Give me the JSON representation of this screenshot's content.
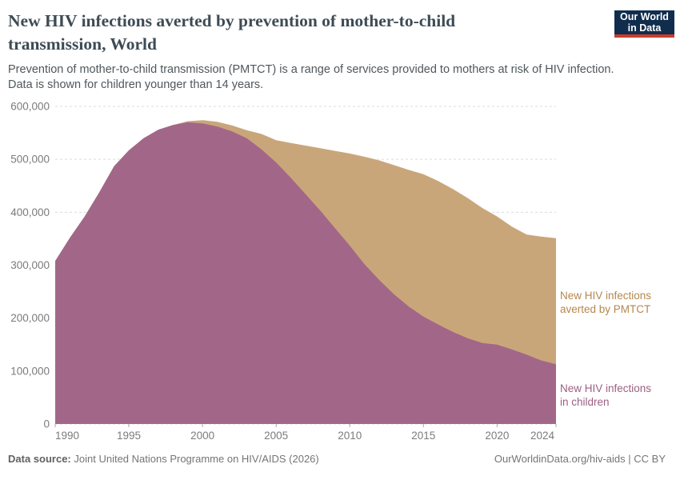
{
  "header": {
    "title": "New HIV infections averted by prevention of mother-to-child\ntransmission, World",
    "subtitle": "Prevention of mother-to-child transmission (PMTCT) is a range of services provided to mothers at risk of HIV infection.\nData is shown for children younger than 14 years."
  },
  "logo": {
    "text": "Our World\nin Data",
    "bg_color": "#102d4e",
    "accent_color": "#cc3b2b"
  },
  "chart_data": {
    "type": "area",
    "stacked": true,
    "grid": "dashed-horizontal",
    "x_min": 1990,
    "x_max": 2024,
    "y_min": 0,
    "y_max": 600000,
    "x": [
      1990,
      1991,
      1992,
      1993,
      1994,
      1995,
      1996,
      1997,
      1998,
      1999,
      2000,
      2001,
      2002,
      2003,
      2004,
      2005,
      2006,
      2007,
      2008,
      2009,
      2010,
      2011,
      2012,
      2013,
      2014,
      2015,
      2016,
      2017,
      2018,
      2019,
      2020,
      2021,
      2022,
      2023,
      2024
    ],
    "series": [
      {
        "name": "New HIV infections in children",
        "label_lines": "New HIV infections\nin children",
        "color": "#a26788",
        "label_color": "#9c5f83",
        "values": [
          308000,
          352000,
          392000,
          438000,
          487000,
          517000,
          540000,
          556000,
          565000,
          570000,
          568000,
          562000,
          553000,
          540000,
          519000,
          494000,
          465000,
          434000,
          403000,
          370000,
          337000,
          302000,
          272000,
          245000,
          222000,
          203000,
          188000,
          174000,
          162000,
          153000,
          150000,
          141000,
          131000,
          120000,
          113000
        ]
      },
      {
        "name": "New HIV infections averted by PMTCT",
        "label_lines": "New HIV infections\naverted by PMTCT",
        "color": "#c9a67a",
        "label_color": "#b5874e",
        "values": [
          0,
          0,
          0,
          0,
          0,
          0,
          0,
          0,
          0,
          2000,
          6000,
          9000,
          11000,
          15000,
          29000,
          42000,
          66000,
          92000,
          118000,
          146000,
          174000,
          203000,
          226000,
          244000,
          258000,
          269000,
          271000,
          270000,
          265000,
          255000,
          242000,
          232000,
          227000,
          234000,
          238000
        ]
      }
    ],
    "y_ticks": [
      {
        "value": 0,
        "label": "0"
      },
      {
        "value": 100000,
        "label": "100,000"
      },
      {
        "value": 200000,
        "label": "200,000"
      },
      {
        "value": 300000,
        "label": "300,000"
      },
      {
        "value": 400000,
        "label": "400,000"
      },
      {
        "value": 500000,
        "label": "500,000"
      },
      {
        "value": 600000,
        "label": "600,000"
      }
    ],
    "x_ticks": [
      {
        "value": 1990,
        "label": "1990"
      },
      {
        "value": 1995,
        "label": "1995"
      },
      {
        "value": 2000,
        "label": "2000"
      },
      {
        "value": 2005,
        "label": "2005"
      },
      {
        "value": 2010,
        "label": "2010"
      },
      {
        "value": 2015,
        "label": "2015"
      },
      {
        "value": 2020,
        "label": "2020"
      },
      {
        "value": 2024,
        "label": "2024"
      }
    ],
    "gridline_color": "#dcdcdc",
    "tick_color": "#a8a8a8"
  },
  "footer": {
    "source_label": "Data source:",
    "source_value": "Joint United Nations Programme on HIV/AIDS (2026)",
    "credit": "OurWorldinData.org/hiv-aids | CC BY"
  }
}
